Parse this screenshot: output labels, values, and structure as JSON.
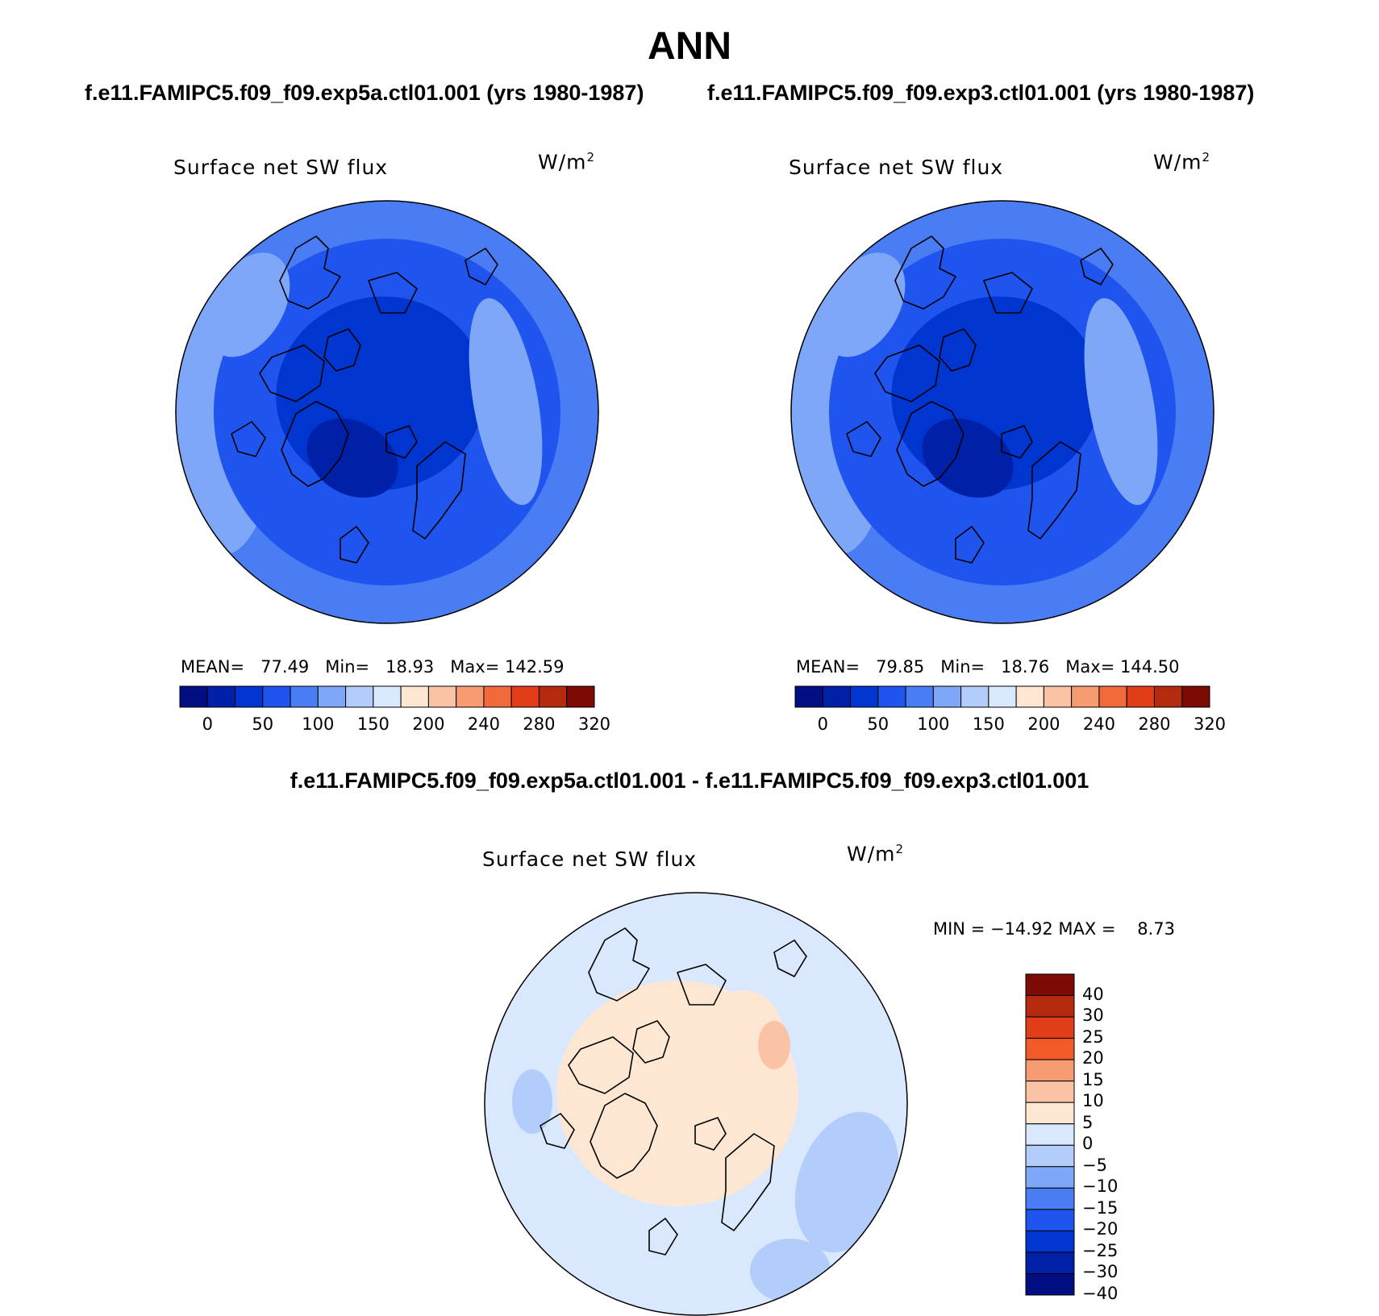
{
  "title": "ANN",
  "panels": [
    {
      "case_title": "f.e11.FAMIPC5.f09_f09.exp5a.ctl01.001 (yrs 1980-1987)",
      "variable": "Surface net SW flux",
      "units_base": "W/m",
      "units_exp": "2",
      "stats": {
        "mean_label": "MEAN=",
        "mean": "77.49",
        "min_label": "Min=",
        "min": "18.93",
        "max_label": "Max=",
        "max": "142.59"
      }
    },
    {
      "case_title": "f.e11.FAMIPC5.f09_f09.exp3.ctl01.001 (yrs 1980-1987)",
      "variable": "Surface net SW flux",
      "units_base": "W/m",
      "units_exp": "2",
      "stats": {
        "mean_label": "MEAN=",
        "mean": "79.85",
        "min_label": "Min=",
        "min": "18.76",
        "max_label": "Max=",
        "max": "144.50"
      }
    }
  ],
  "abs_colorbar": {
    "colors": [
      "#000e82",
      "#0020a8",
      "#0035d0",
      "#1f55ee",
      "#4a7df4",
      "#7ea7f7",
      "#b3cdfa",
      "#d9e8fc",
      "#fde7d3",
      "#fbc3a5",
      "#f79b72",
      "#f06a3c",
      "#e03d18",
      "#b42a0d",
      "#7d0b05"
    ],
    "tick_labels": [
      "0",
      "50",
      "100",
      "150",
      "200",
      "240",
      "280",
      "320"
    ]
  },
  "difference": {
    "title": "f.e11.FAMIPC5.f09_f09.exp5a.ctl01.001 - f.e11.FAMIPC5.f09_f09.exp3.ctl01.001",
    "variable": "Surface net SW flux",
    "units_base": "W/m",
    "units_exp": "2",
    "min_max": "MIN = −14.92 MAX =    8.73",
    "colorbar": {
      "colors_top_to_bottom": [
        "#7d0b05",
        "#b42a0d",
        "#e03d18",
        "#f25a28",
        "#f79b72",
        "#fbc3a5",
        "#fde7d3",
        "#d9e8fc",
        "#b3cdfa",
        "#7ea7f7",
        "#4a7df4",
        "#1f55ee",
        "#0035d0",
        "#0020a8",
        "#000e82"
      ],
      "tick_labels": [
        "40",
        "30",
        "25",
        "20",
        "15",
        "10",
        "5",
        "0",
        "−5",
        "−10",
        "−15",
        "−20",
        "−25",
        "−30",
        "−40"
      ]
    }
  }
}
